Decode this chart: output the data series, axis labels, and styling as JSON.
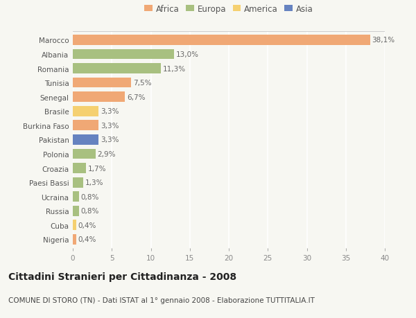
{
  "countries": [
    "Marocco",
    "Albania",
    "Romania",
    "Tunisia",
    "Senegal",
    "Brasile",
    "Burkina Faso",
    "Pakistan",
    "Polonia",
    "Croazia",
    "Paesi Bassi",
    "Ucraina",
    "Russia",
    "Cuba",
    "Nigeria"
  ],
  "values": [
    38.1,
    13.0,
    11.3,
    7.5,
    6.7,
    3.3,
    3.3,
    3.3,
    2.9,
    1.7,
    1.3,
    0.8,
    0.8,
    0.4,
    0.4
  ],
  "labels": [
    "38,1%",
    "13,0%",
    "11,3%",
    "7,5%",
    "6,7%",
    "3,3%",
    "3,3%",
    "3,3%",
    "2,9%",
    "1,7%",
    "1,3%",
    "0,8%",
    "0,8%",
    "0,4%",
    "0,4%"
  ],
  "colors": [
    "#f0a875",
    "#a8c080",
    "#a8c080",
    "#f0a875",
    "#f0a875",
    "#f5d070",
    "#f0a875",
    "#6683c0",
    "#a8c080",
    "#a8c080",
    "#a8c080",
    "#a8c080",
    "#a8c080",
    "#f5d070",
    "#f0a875"
  ],
  "legend_labels": [
    "Africa",
    "Europa",
    "America",
    "Asia"
  ],
  "legend_colors": [
    "#f0a875",
    "#a8c080",
    "#f5d070",
    "#6683c0"
  ],
  "title": "Cittadini Stranieri per Cittadinanza - 2008",
  "subtitle": "COMUNE DI STORO (TN) - Dati ISTAT al 1° gennaio 2008 - Elaborazione TUTTITALIA.IT",
  "xlim": [
    0,
    40
  ],
  "xticks": [
    0,
    5,
    10,
    15,
    20,
    25,
    30,
    35,
    40
  ],
  "background_color": "#f7f7f2",
  "bar_height": 0.72,
  "grid_color": "#ffffff",
  "title_fontsize": 10,
  "subtitle_fontsize": 7.5,
  "tick_fontsize": 7.5,
  "label_fontsize": 7.5,
  "legend_fontsize": 8.5
}
